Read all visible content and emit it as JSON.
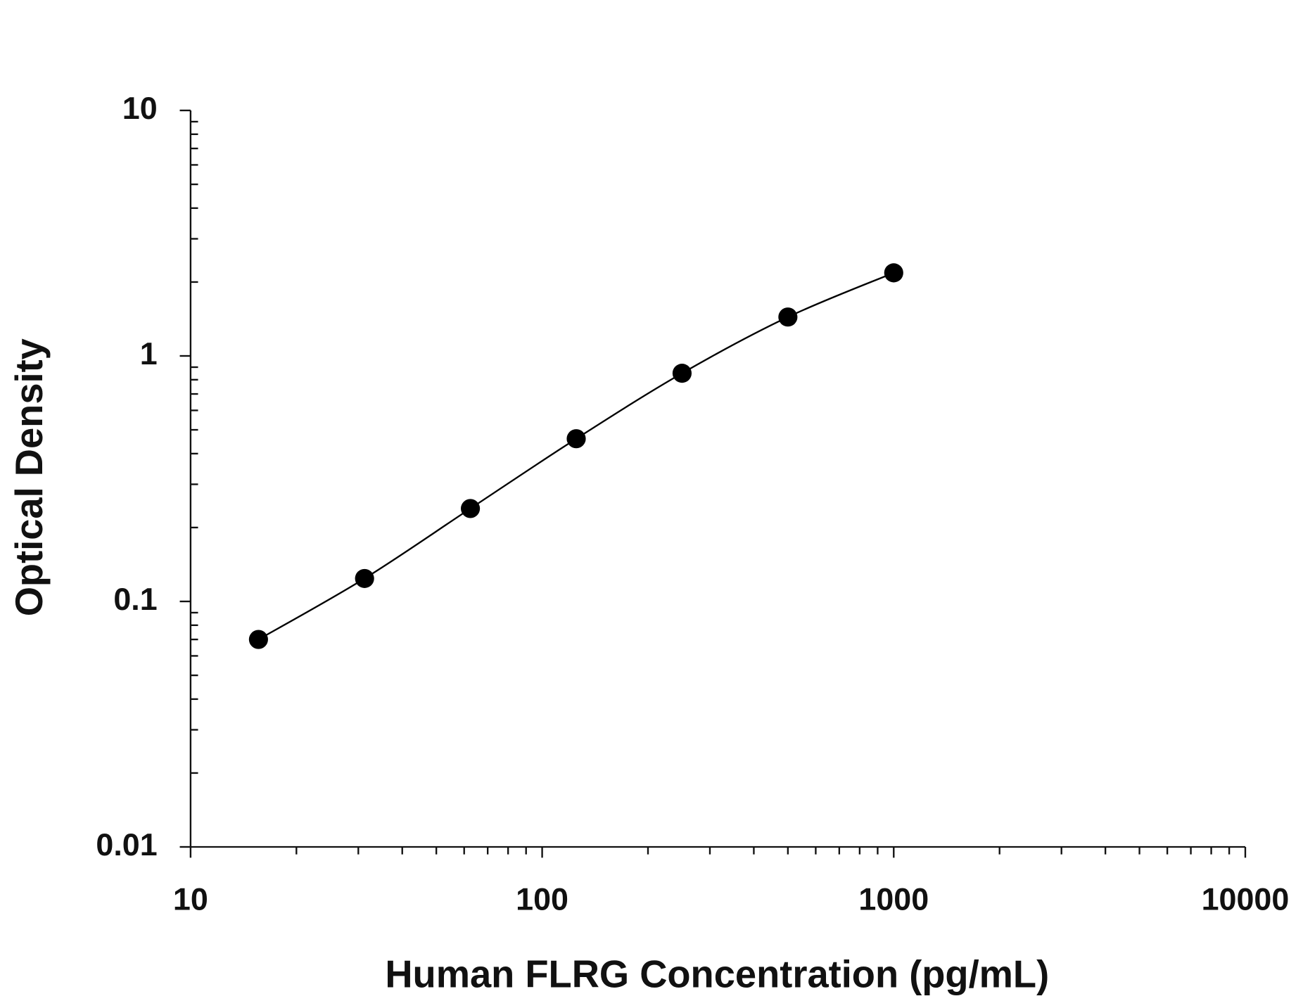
{
  "chart_data": {
    "type": "scatter",
    "x_label": "Human FLRG Concentration (pg/mL)",
    "y_label": "Optical Density",
    "xscale": "log",
    "yscale": "log",
    "xlim": [
      10,
      10000
    ],
    "xticks": [
      10,
      100,
      1000,
      10000
    ],
    "ylim": [
      0.01,
      10
    ],
    "yticks": [
      0.01,
      0.1,
      1,
      10
    ],
    "fit_line": true,
    "series": [
      {
        "color": "#000000",
        "x": [
          15.6,
          31.25,
          62.5,
          125,
          250,
          500,
          1000
        ],
        "values": [
          0.07,
          0.124,
          0.239,
          0.46,
          0.85,
          1.44,
          2.18
        ]
      }
    ]
  }
}
